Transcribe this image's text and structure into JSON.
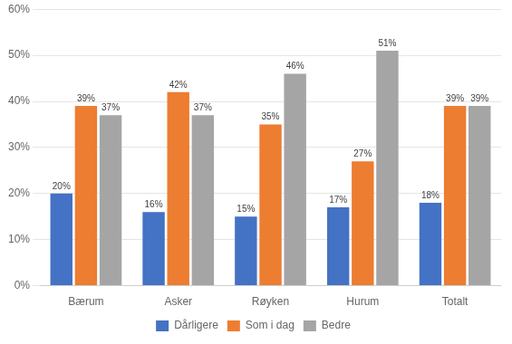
{
  "chart_data": {
    "type": "bar",
    "categories": [
      "Bærum",
      "Asker",
      "Røyken",
      "Hurum",
      "Totalt"
    ],
    "series": [
      {
        "name": "Dårligere",
        "color": "#4472C4",
        "values": [
          20,
          16,
          15,
          17,
          18
        ],
        "value_labels": [
          "20%",
          "16%",
          "15%",
          "17%",
          "18%"
        ]
      },
      {
        "name": "Som i dag",
        "color": "#ED7D31",
        "values": [
          39,
          42,
          35,
          27,
          39
        ],
        "value_labels": [
          "39%",
          "42%",
          "35%",
          "27%",
          "39%"
        ]
      },
      {
        "name": "Bedre",
        "color": "#A5A5A5",
        "values": [
          37,
          37,
          46,
          51,
          39
        ],
        "value_labels": [
          "37%",
          "37%",
          "46%",
          "51%",
          "39%"
        ]
      }
    ],
    "ylim": [
      0,
      60
    ],
    "yticks": [
      {
        "value": 0,
        "label": "0%"
      },
      {
        "value": 10,
        "label": "10%"
      },
      {
        "value": 20,
        "label": "20%"
      },
      {
        "value": 30,
        "label": "30%"
      },
      {
        "value": 40,
        "label": "40%"
      },
      {
        "value": 50,
        "label": "50%"
      },
      {
        "value": 60,
        "label": "60%"
      }
    ],
    "grid": true,
    "legend": "bottom",
    "data_labels": true
  }
}
